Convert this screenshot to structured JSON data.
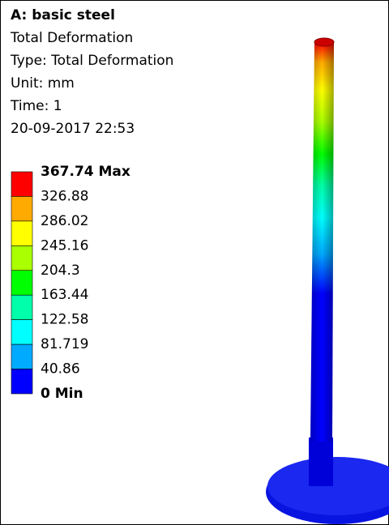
{
  "header": {
    "title": "A: basic steel",
    "lines": [
      "Total Deformation",
      "Type: Total Deformation",
      "Unit: mm",
      "Time: 1",
      "20-09-2017 22:53"
    ]
  },
  "legend": {
    "labels": [
      "367.74 Max",
      "326.88",
      "286.02",
      "245.16",
      "204.3",
      "163.44",
      "122.58",
      "81.719",
      "40.86",
      "0 Min"
    ],
    "colors": [
      "#ff0000",
      "#ffaa00",
      "#ffff00",
      "#aaff00",
      "#00ff00",
      "#00ffaa",
      "#00ffff",
      "#00aaff",
      "#0000ff"
    ]
  }
}
